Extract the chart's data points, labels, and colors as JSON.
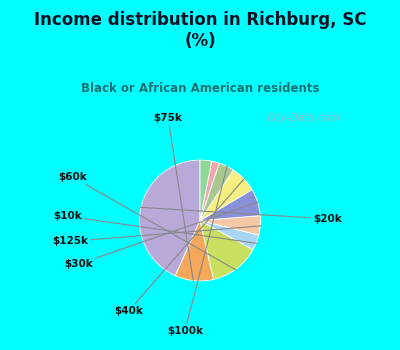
{
  "title": "Income distribution in Richburg, SC\n(%)",
  "subtitle": "Black or African American residents",
  "bg_color": "#00FFFF",
  "chart_bg": "#ddf2e8",
  "sizes": [
    42,
    10,
    13,
    4,
    5,
    7,
    7,
    4,
    2,
    3
  ],
  "colors": [
    "#b8a9d9",
    "#f5a85a",
    "#c8e060",
    "#a8d4f5",
    "#f5c9a5",
    "#8890d8",
    "#f5ef80",
    "#a8c890",
    "#f0a8b0",
    "#90d898"
  ],
  "labels_display": [
    "$20k",
    "$75k",
    "$60k",
    "$10k",
    "$125k",
    "$30k",
    "$40k",
    "$100k",
    "",
    ""
  ],
  "startangle": 90,
  "watermark": "City-Data.com",
  "label_positions": [
    [
      "$20k",
      1.52,
      0.02
    ],
    [
      "$75k",
      -0.38,
      1.22
    ],
    [
      "$60k",
      -1.52,
      0.52
    ],
    [
      "$10k",
      -1.58,
      0.05
    ],
    [
      "$125k",
      -1.55,
      -0.25
    ],
    [
      "$30k",
      -1.45,
      -0.52
    ],
    [
      "$40k",
      -0.85,
      -1.08
    ],
    [
      "$100k",
      -0.18,
      -1.32
    ]
  ]
}
